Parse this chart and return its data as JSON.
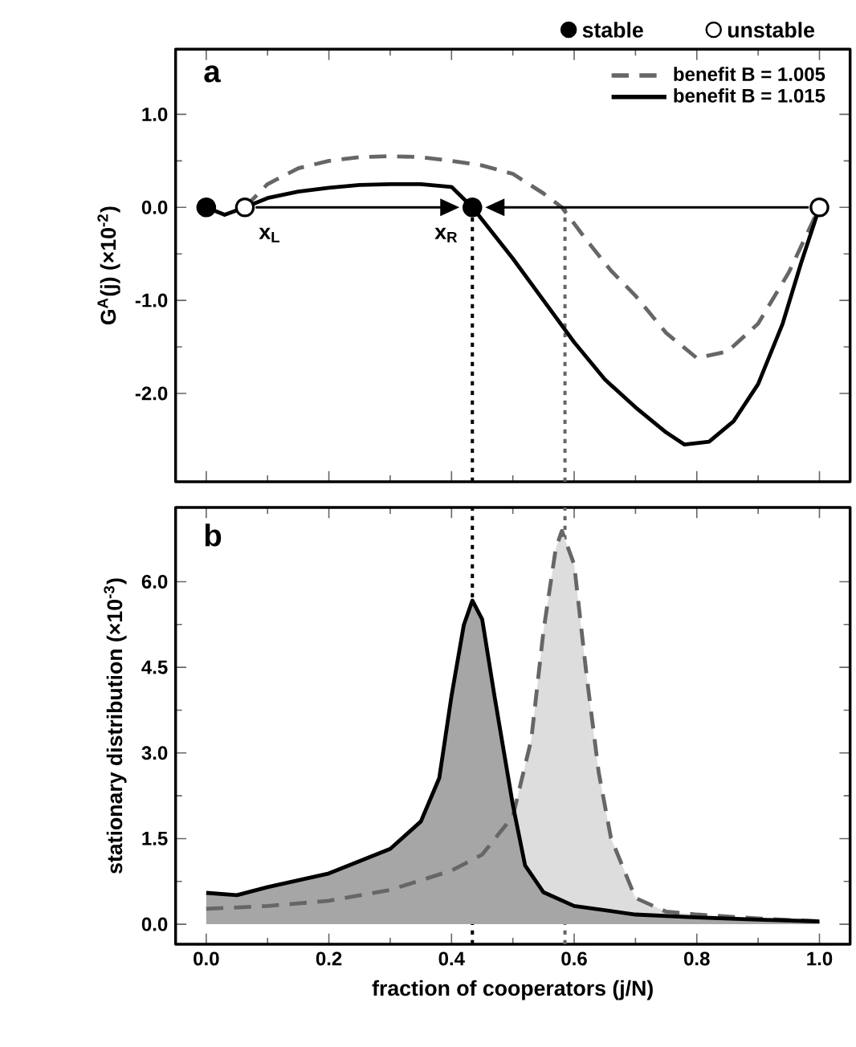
{
  "chart_data": [
    {
      "type": "line",
      "title": "a",
      "ylabel": "G$^{A}$(j) (×10$^{-2}$)",
      "xlim": [
        -0.05,
        1.05
      ],
      "ylim": [
        -2.95,
        1.7
      ],
      "xticks": [
        {
          "value": 0,
          "label": null
        },
        {
          "value": 0.2,
          "label": null
        },
        {
          "value": 0.4,
          "label": null
        },
        {
          "value": 0.6,
          "label": null
        },
        {
          "value": 0.8,
          "label": null
        },
        {
          "value": 1,
          "label": null
        }
      ],
      "yticks": [
        {
          "value": -2,
          "label": "-2.0"
        },
        {
          "value": -1,
          "label": "-1.0"
        },
        {
          "value": 0,
          "label": "0.0"
        },
        {
          "value": 1,
          "label": "1.0"
        }
      ],
      "tick_labels": "y",
      "legend": "top right",
      "series": [
        {
          "name": "benefit B = 1.005",
          "color": "#666666",
          "line_style": "dashed",
          "x": [
            0.063,
            0.1,
            0.15,
            0.2,
            0.25,
            0.3,
            0.35,
            0.4,
            0.45,
            0.5,
            0.55,
            0.58,
            0.62,
            0.66,
            0.7,
            0.75,
            0.8,
            0.85,
            0.9,
            0.95,
            1.0
          ],
          "values": [
            0,
            0.25,
            0.42,
            0.5,
            0.54,
            0.55,
            0.54,
            0.5,
            0.45,
            0.36,
            0.15,
            0,
            -0.35,
            -0.68,
            -0.95,
            -1.35,
            -1.62,
            -1.55,
            -1.25,
            -0.7,
            0
          ]
        },
        {
          "name": "benefit B = 1.015",
          "color": "#000000",
          "line_style": "solid",
          "x": [
            0,
            0.03,
            0.063,
            0.1,
            0.15,
            0.2,
            0.25,
            0.3,
            0.35,
            0.4,
            0.434,
            0.47,
            0.5,
            0.55,
            0.6,
            0.65,
            0.7,
            0.75,
            0.78,
            0.82,
            0.86,
            0.9,
            0.94,
            0.97,
            1.0
          ],
          "values": [
            0,
            -0.08,
            0,
            0.1,
            0.17,
            0.21,
            0.24,
            0.25,
            0.25,
            0.22,
            0,
            -0.3,
            -0.55,
            -1.0,
            -1.45,
            -1.85,
            -2.15,
            -2.42,
            -2.55,
            -2.52,
            -2.3,
            -1.9,
            -1.25,
            -0.6,
            0
          ]
        },
        {
          "type": "scatter",
          "name": "stable",
          "color": "#000000",
          "marker": "circle",
          "x": [
            0,
            0.434
          ],
          "values": [
            0,
            0
          ]
        },
        {
          "type": "scatter",
          "name": "unstable",
          "color": "#ffffff",
          "marker": "circle",
          "x": [
            0.063,
            1.0
          ],
          "values": [
            0,
            0
          ]
        }
      ],
      "ref_lines": [
        {
          "axis": "x",
          "value": 0.434,
          "color": "#000000",
          "line_style": "dotted"
        },
        {
          "axis": "x",
          "value": 0.585,
          "color": "#666666",
          "line_style": "dotted"
        }
      ],
      "annotations": [
        {
          "text": "x$_{L}$",
          "x": 0.063,
          "y": 0
        },
        {
          "text": "x$_{R}$",
          "x": 0.434,
          "y": 0
        }
      ]
    },
    {
      "type": "area",
      "title": "b",
      "xlabel": "fraction of cooperators (j/N)",
      "ylabel": "stationary distribution (×10$^{-3}$)",
      "xlim": [
        -0.05,
        1.05
      ],
      "ylim": [
        -0.35,
        7.3
      ],
      "xticks": [
        {
          "value": 0,
          "label": "0.0"
        },
        0.2,
        0.4,
        0.6,
        0.8,
        {
          "value": 1,
          "label": "1.0"
        }
      ],
      "yticks": [
        {
          "value": 0,
          "label": "0.0"
        },
        1.5,
        {
          "value": 3,
          "label": "3.0"
        },
        4.5,
        {
          "value": 6,
          "label": "6.0"
        }
      ],
      "grid": false,
      "series": [
        {
          "color": "#666666",
          "line_style": "dashed",
          "x": [
            0,
            0.1,
            0.2,
            0.3,
            0.4,
            0.45,
            0.5,
            0.53,
            0.55,
            0.57,
            0.58,
            0.6,
            0.62,
            0.64,
            0.66,
            0.7,
            0.75,
            0.8,
            0.9,
            1.0
          ],
          "values": [
            0.27,
            0.32,
            0.41,
            0.6,
            0.94,
            1.22,
            1.89,
            3.23,
            5.14,
            6.58,
            6.89,
            6.3,
            4.38,
            2.66,
            1.51,
            0.46,
            0.22,
            0.17,
            0.1,
            0.05
          ]
        },
        {
          "color": "#000000",
          "line_style": "solid",
          "x": [
            0,
            0.05,
            0.1,
            0.2,
            0.3,
            0.35,
            0.38,
            0.4,
            0.42,
            0.434,
            0.45,
            0.47,
            0.5,
            0.52,
            0.55,
            0.6,
            0.7,
            0.8,
            0.9,
            1.0
          ],
          "values": [
            0.55,
            0.51,
            0.65,
            0.89,
            1.32,
            1.8,
            2.56,
            4.0,
            5.24,
            5.67,
            5.34,
            4.0,
            2.09,
            1.03,
            0.56,
            0.32,
            0.17,
            0.12,
            0.08,
            0.05
          ]
        }
      ],
      "ref_lines": [
        {
          "axis": "x",
          "value": 0.434,
          "color": "#000000",
          "line_style": "dotted"
        },
        {
          "axis": "x",
          "value": 0.585,
          "color": "#666666",
          "line_style": "dotted"
        }
      ]
    }
  ]
}
